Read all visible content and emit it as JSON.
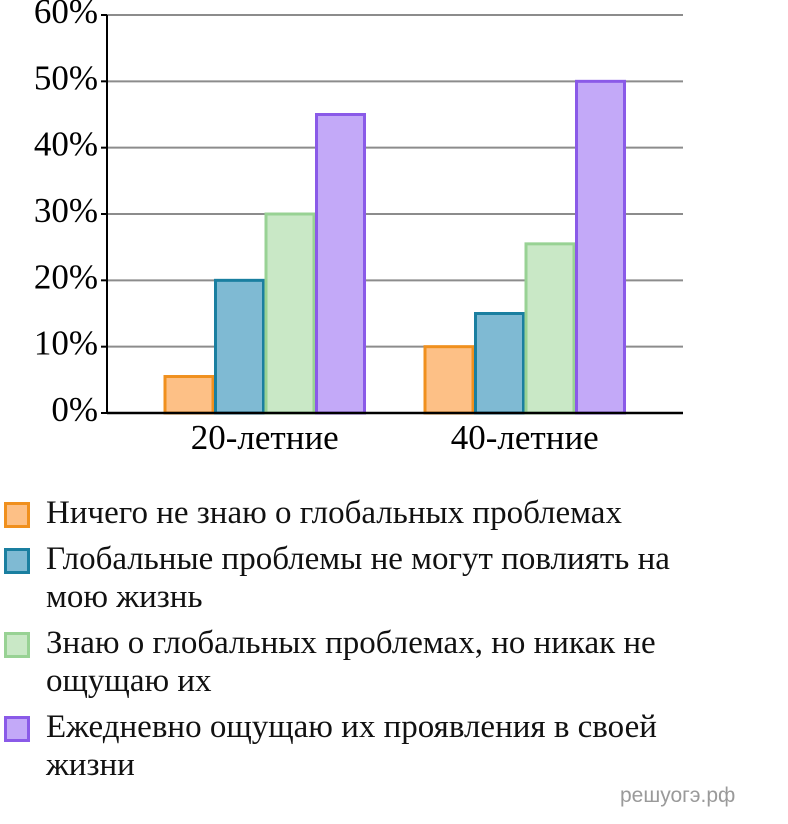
{
  "chart_data": {
    "type": "bar",
    "categories": [
      "20-летние",
      "40-летние"
    ],
    "series": [
      {
        "name": "Ничего не знаю о глобальных проблемах",
        "color": "#fdc086",
        "edgecolor": "#f0901e",
        "values": [
          5.5,
          10
        ]
      },
      {
        "name": "Глобальные проблемы не могут повлиять на мою жизнь",
        "color": "#7fbad3",
        "edgecolor": "#1a7fa0",
        "values": [
          20,
          15
        ]
      },
      {
        "name": "Знаю о глобальных проблемах, но никак не ощущаю их",
        "color": "#c9e8c6",
        "edgecolor": "#98d294",
        "values": [
          30,
          25.5
        ]
      },
      {
        "name": "Ежедневно ощущаю их проявления в своей жизни",
        "color": "#c3a9f8",
        "edgecolor": "#8a5ae8",
        "values": [
          45,
          50
        ]
      }
    ],
    "ylim": [
      0,
      60
    ],
    "yticks": [
      {
        "value": 0,
        "label": "0%"
      },
      {
        "value": 10,
        "label": "10%"
      },
      {
        "value": 20,
        "label": "20%"
      },
      {
        "value": 30,
        "label": "30%"
      },
      {
        "value": 40,
        "label": "40%"
      },
      {
        "value": 50,
        "label": "50%"
      },
      {
        "value": 60,
        "label": "60%"
      }
    ],
    "grid": true,
    "watermark": "решуогэ.рф"
  }
}
